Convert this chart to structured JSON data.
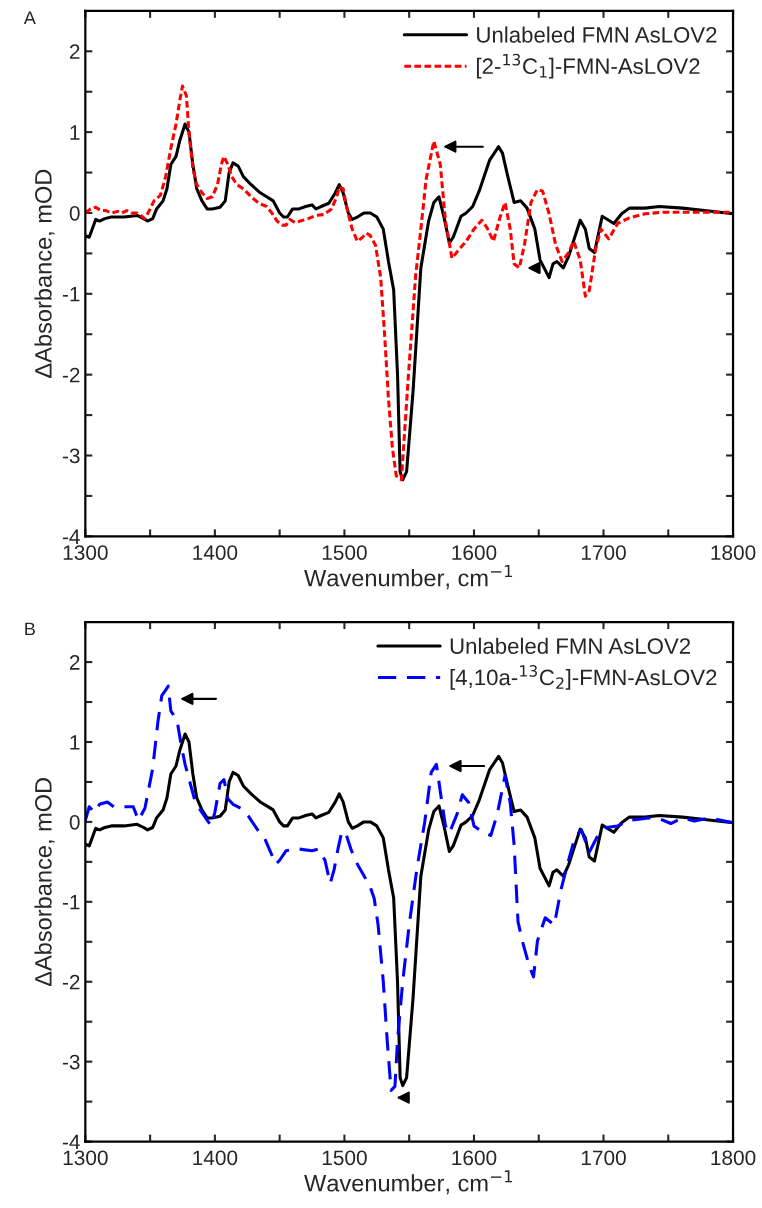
{
  "chart_data": [
    {
      "type": "line",
      "title": "A",
      "xlabel": "Wavenumber, cm$^{−1}$",
      "ylabel": "ΔAbsorbance, mOD",
      "xlim": [
        1300,
        1800
      ],
      "ylim": [
        -4,
        2.5
      ],
      "xticks": [
        1300,
        {
          "value": 1350,
          "label": null
        },
        1400,
        {
          "value": 1450,
          "label": null
        },
        1500,
        {
          "value": 1550,
          "label": null
        },
        1600,
        {
          "value": 1650,
          "label": null
        },
        1700,
        {
          "value": 1750,
          "label": null
        },
        1800
      ],
      "yticks": [
        -4,
        {
          "value": -3.5,
          "label": null
        },
        -3,
        {
          "value": -2.5,
          "label": null
        },
        -2,
        {
          "value": -1.5,
          "label": null
        },
        -1,
        {
          "value": -0.5,
          "label": null
        },
        0,
        {
          "value": 0.5,
          "label": null
        },
        1,
        {
          "value": 1.5,
          "label": null
        },
        2
      ],
      "legend": "top right",
      "grid": false,
      "series": [
        {
          "name": "Unlabeled FMN AsLOV2",
          "color": "#000000",
          "line_style": "solid",
          "x": [
            1300,
            1303,
            1308,
            1311,
            1315,
            1320,
            1325,
            1330,
            1340,
            1345,
            1348,
            1352,
            1355,
            1360,
            1363,
            1366,
            1370,
            1373,
            1377,
            1380,
            1383,
            1386,
            1390,
            1394,
            1398,
            1404,
            1408,
            1411,
            1414,
            1418,
            1422,
            1428,
            1435,
            1440,
            1445,
            1450,
            1453,
            1456,
            1460,
            1465,
            1470,
            1475,
            1478,
            1482,
            1488,
            1493,
            1496,
            1499,
            1503,
            1506,
            1510,
            1515,
            1520,
            1525,
            1530,
            1534,
            1538,
            1541,
            1543,
            1545,
            1548,
            1553,
            1559,
            1565,
            1569,
            1573,
            1577,
            1581,
            1584,
            1590,
            1594,
            1599,
            1604,
            1612,
            1619,
            1622,
            1626,
            1631,
            1636,
            1641,
            1647,
            1651,
            1658,
            1661,
            1664,
            1669,
            1673,
            1682,
            1686,
            1689,
            1693,
            1699,
            1704,
            1708,
            1714,
            1720,
            1732,
            1743,
            1761,
            1778,
            1800
          ],
          "values": [
            -0.28,
            -0.3,
            -0.08,
            -0.1,
            -0.07,
            -0.05,
            -0.05,
            -0.05,
            -0.03,
            -0.07,
            -0.1,
            -0.07,
            0.05,
            0.15,
            0.3,
            0.6,
            0.7,
            0.9,
            1.1,
            1.0,
            0.6,
            0.3,
            0.15,
            0.05,
            0.05,
            0.07,
            0.15,
            0.5,
            0.62,
            0.58,
            0.45,
            0.35,
            0.25,
            0.2,
            0.15,
            0.0,
            -0.05,
            -0.05,
            0.05,
            0.05,
            0.08,
            0.1,
            0.05,
            0.08,
            0.12,
            0.25,
            0.35,
            0.25,
            0.0,
            -0.08,
            -0.05,
            0.0,
            0.0,
            -0.05,
            -0.2,
            -0.6,
            -0.95,
            -2.0,
            -3.2,
            -3.3,
            -3.2,
            -2.2,
            -0.68,
            -0.1,
            0.13,
            0.2,
            -0.06,
            -0.37,
            -0.3,
            -0.04,
            0.0,
            0.08,
            0.27,
            0.65,
            0.82,
            0.74,
            0.46,
            0.13,
            0.15,
            0.06,
            -0.2,
            -0.58,
            -0.8,
            -0.63,
            -0.6,
            -0.68,
            -0.54,
            -0.09,
            -0.2,
            -0.44,
            -0.49,
            -0.04,
            -0.09,
            -0.13,
            -0.01,
            0.06,
            0.06,
            0.08,
            0.06,
            0.03,
            -0.01
          ]
        },
        {
          "name": "[2-$^{13}$C$_{1}$]-FMN-AsLOV2",
          "color": "#ff0000",
          "line_style": "dotted",
          "x": [
            1300,
            1304,
            1308,
            1312,
            1316,
            1320,
            1325,
            1328,
            1332,
            1336,
            1340,
            1346,
            1350,
            1353,
            1358,
            1362,
            1366,
            1370,
            1373,
            1375,
            1378,
            1380,
            1383,
            1386,
            1390,
            1394,
            1398,
            1402,
            1405,
            1407,
            1410,
            1413,
            1417,
            1422,
            1428,
            1434,
            1440,
            1444,
            1448,
            1452,
            1455,
            1458,
            1462,
            1466,
            1472,
            1478,
            1484,
            1490,
            1494,
            1496,
            1499,
            1502,
            1506,
            1510,
            1514,
            1517,
            1520,
            1524,
            1528,
            1531,
            1534,
            1537,
            1540,
            1544,
            1549,
            1555,
            1559,
            1563,
            1569,
            1574,
            1578,
            1583,
            1588,
            1594,
            1600,
            1606,
            1610,
            1615,
            1620,
            1624,
            1628,
            1631,
            1635,
            1639,
            1644,
            1649,
            1653,
            1658,
            1663,
            1668,
            1673,
            1677,
            1682,
            1686,
            1689,
            1694,
            1698,
            1704,
            1711,
            1720,
            1732,
            1746,
            1761,
            1778,
            1800
          ],
          "values": [
            0.0,
            0.05,
            0.07,
            0.03,
            0.03,
            0.0,
            0.02,
            0.0,
            0.03,
            0.0,
            0.0,
            -0.07,
            0.05,
            0.15,
            0.22,
            0.45,
            0.8,
            1.1,
            1.4,
            1.57,
            1.45,
            1.0,
            0.55,
            0.35,
            0.25,
            0.18,
            0.2,
            0.35,
            0.6,
            0.7,
            0.6,
            0.45,
            0.35,
            0.3,
            0.2,
            0.12,
            0.08,
            0.0,
            -0.1,
            -0.15,
            -0.15,
            -0.08,
            -0.12,
            -0.1,
            -0.07,
            -0.03,
            -0.02,
            0.05,
            0.2,
            0.32,
            0.3,
            0.05,
            -0.2,
            -0.35,
            -0.3,
            -0.25,
            -0.28,
            -0.4,
            -0.8,
            -1.5,
            -2.3,
            -2.9,
            -3.25,
            -3.3,
            -2.1,
            -0.77,
            -0.2,
            0.41,
            0.89,
            0.6,
            -0.1,
            -0.56,
            -0.46,
            -0.35,
            -0.2,
            -0.09,
            -0.18,
            -0.35,
            -0.06,
            0.13,
            -0.2,
            -0.63,
            -0.68,
            -0.39,
            0.13,
            0.29,
            0.27,
            -0.01,
            -0.39,
            -0.6,
            -0.49,
            -0.35,
            -0.58,
            -1.03,
            -0.96,
            -0.44,
            -0.2,
            -0.32,
            -0.13,
            -0.06,
            -0.01,
            0.01,
            0.01,
            0.01,
            0.01
          ]
        }
      ]
    },
    {
      "type": "line",
      "title": "B",
      "xlabel": "Wavenumber, cm$^{−1}$",
      "ylabel": "ΔAbsorbance, mOD",
      "xlim": [
        1300,
        1800
      ],
      "ylim": [
        -4,
        2.5
      ],
      "xticks": [
        1300,
        {
          "value": 1350,
          "label": null
        },
        1400,
        {
          "value": 1450,
          "label": null
        },
        1500,
        {
          "value": 1550,
          "label": null
        },
        1600,
        {
          "value": 1650,
          "label": null
        },
        1700,
        {
          "value": 1750,
          "label": null
        },
        1800
      ],
      "yticks": [
        -4,
        {
          "value": -3.5,
          "label": null
        },
        -3,
        {
          "value": -2.5,
          "label": null
        },
        -2,
        {
          "value": -1.5,
          "label": null
        },
        -1,
        {
          "value": -0.5,
          "label": null
        },
        0,
        {
          "value": 0.5,
          "label": null
        },
        1,
        {
          "value": 1.5,
          "label": null
        },
        2
      ],
      "legend": "top right",
      "grid": false,
      "series": [
        {
          "name": "Unlabeled FMN AsLOV2",
          "color": "#000000",
          "line_style": "solid",
          "x": [
            1300,
            1303,
            1308,
            1311,
            1315,
            1320,
            1325,
            1330,
            1340,
            1345,
            1348,
            1352,
            1355,
            1360,
            1363,
            1366,
            1370,
            1373,
            1377,
            1380,
            1383,
            1386,
            1390,
            1394,
            1398,
            1404,
            1408,
            1411,
            1414,
            1418,
            1422,
            1428,
            1435,
            1440,
            1445,
            1450,
            1453,
            1456,
            1460,
            1465,
            1470,
            1475,
            1478,
            1482,
            1488,
            1493,
            1496,
            1499,
            1503,
            1506,
            1510,
            1515,
            1520,
            1525,
            1530,
            1534,
            1538,
            1541,
            1543,
            1545,
            1548,
            1553,
            1559,
            1565,
            1569,
            1573,
            1577,
            1581,
            1584,
            1590,
            1594,
            1599,
            1604,
            1612,
            1619,
            1622,
            1626,
            1631,
            1636,
            1641,
            1647,
            1651,
            1658,
            1661,
            1664,
            1669,
            1673,
            1682,
            1686,
            1689,
            1693,
            1699,
            1704,
            1708,
            1714,
            1720,
            1732,
            1743,
            1761,
            1778,
            1800
          ],
          "values": [
            -0.28,
            -0.3,
            -0.08,
            -0.1,
            -0.07,
            -0.05,
            -0.05,
            -0.05,
            -0.03,
            -0.07,
            -0.1,
            -0.07,
            0.05,
            0.15,
            0.3,
            0.6,
            0.7,
            0.9,
            1.1,
            1.0,
            0.6,
            0.3,
            0.15,
            0.05,
            0.05,
            0.07,
            0.15,
            0.5,
            0.62,
            0.58,
            0.45,
            0.35,
            0.25,
            0.2,
            0.15,
            0.0,
            -0.05,
            -0.05,
            0.05,
            0.05,
            0.08,
            0.1,
            0.05,
            0.08,
            0.12,
            0.25,
            0.35,
            0.25,
            0.0,
            -0.08,
            -0.05,
            0.0,
            0.0,
            -0.05,
            -0.2,
            -0.6,
            -0.95,
            -2.0,
            -3.2,
            -3.3,
            -3.2,
            -2.2,
            -0.68,
            -0.1,
            0.13,
            0.2,
            -0.06,
            -0.37,
            -0.3,
            -0.04,
            0.0,
            0.08,
            0.27,
            0.65,
            0.82,
            0.74,
            0.46,
            0.13,
            0.15,
            0.06,
            -0.2,
            -0.58,
            -0.8,
            -0.63,
            -0.6,
            -0.68,
            -0.54,
            -0.09,
            -0.2,
            -0.44,
            -0.49,
            -0.04,
            -0.09,
            -0.13,
            -0.01,
            0.06,
            0.06,
            0.08,
            0.06,
            0.03,
            -0.01
          ]
        },
        {
          "name": "[4,10a-$^{13}$C$_{2}$]-FMN-AsLOV2",
          "color": "#0000ff",
          "line_style": "dashed",
          "x": [
            1300,
            1303,
            1307,
            1311,
            1317,
            1322,
            1330,
            1337,
            1341,
            1346,
            1352,
            1356,
            1359,
            1362,
            1364,
            1366,
            1368,
            1371,
            1374,
            1377,
            1381,
            1385,
            1390,
            1395,
            1397,
            1400,
            1404,
            1407,
            1410,
            1414,
            1420,
            1426,
            1433,
            1438,
            1442,
            1447,
            1450,
            1455,
            1465,
            1475,
            1480,
            1485,
            1489,
            1492,
            1495,
            1498,
            1501,
            1505,
            1510,
            1515,
            1520,
            1523,
            1526,
            1530,
            1533,
            1536,
            1539,
            1541,
            1545,
            1550,
            1556,
            1562,
            1567,
            1571,
            1574,
            1578,
            1581,
            1587,
            1591,
            1596,
            1600,
            1606,
            1613,
            1618,
            1624,
            1628,
            1631,
            1634,
            1638,
            1643,
            1646,
            1649,
            1655,
            1662,
            1667,
            1673,
            1678,
            1683,
            1689,
            1695,
            1702,
            1711,
            1720,
            1735,
            1743,
            1752,
            1761,
            1770,
            1782,
            1800
          ],
          "values": [
            0.02,
            0.19,
            0.12,
            0.22,
            0.25,
            0.19,
            0.19,
            0.19,
            0.02,
            0.17,
            0.67,
            1.25,
            1.58,
            1.65,
            1.7,
            1.39,
            1.34,
            1.25,
            0.96,
            0.72,
            0.48,
            0.24,
            0.12,
            0.0,
            -0.05,
            0.12,
            0.48,
            0.53,
            0.29,
            0.22,
            0.17,
            0.07,
            -0.1,
            -0.19,
            -0.34,
            -0.53,
            -0.48,
            -0.36,
            -0.34,
            -0.36,
            -0.34,
            -0.48,
            -0.77,
            -0.6,
            -0.34,
            -0.12,
            -0.14,
            -0.34,
            -0.53,
            -0.67,
            -0.82,
            -0.96,
            -1.29,
            -2.0,
            -2.73,
            -3.36,
            -3.31,
            -2.73,
            -2.0,
            -1.29,
            -0.58,
            0.0,
            0.62,
            0.72,
            0.38,
            -0.05,
            -0.14,
            0.1,
            0.34,
            0.24,
            -0.05,
            -0.12,
            -0.17,
            0.1,
            0.58,
            0.24,
            -0.29,
            -1.25,
            -1.53,
            -1.82,
            -1.94,
            -1.49,
            -1.2,
            -1.29,
            -0.86,
            -0.48,
            -0.19,
            -0.1,
            -0.38,
            -0.19,
            -0.07,
            -0.05,
            0.02,
            0.05,
            0.04,
            -0.02,
            0.05,
            0.01,
            0.05,
            -0.01
          ]
        }
      ]
    }
  ]
}
